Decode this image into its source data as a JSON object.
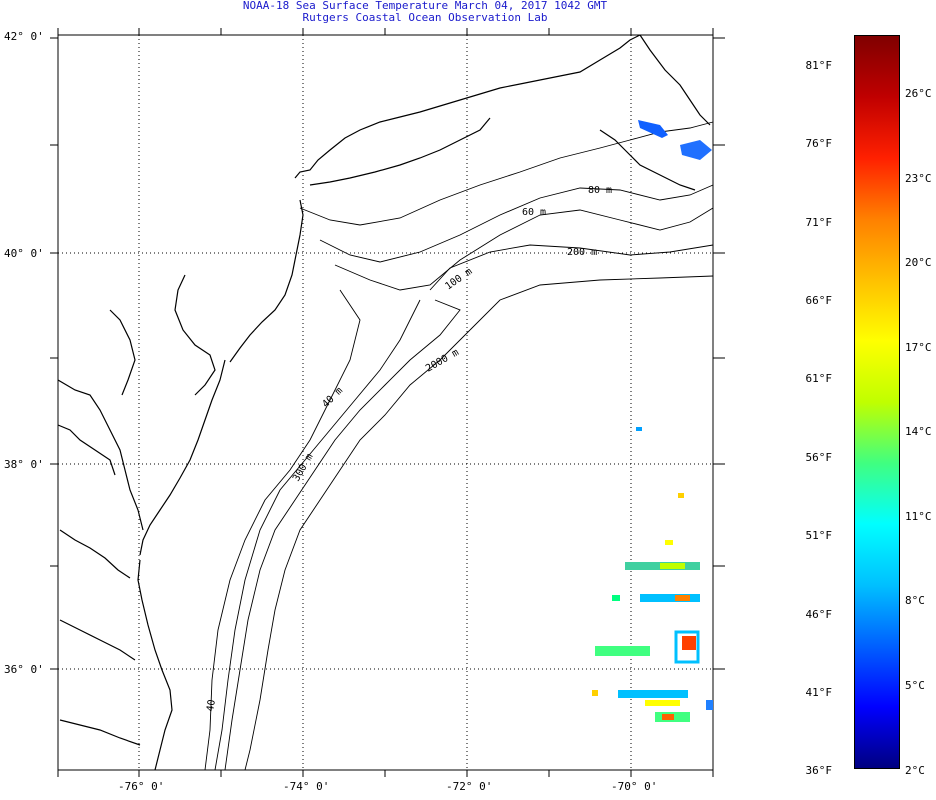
{
  "title": {
    "line1": "NOAA-18 Sea Surface Temperature March 04, 2017 1042 GMT",
    "line2": "Rutgers Coastal Ocean Observation Lab"
  },
  "latitude_labels": [
    "42° 0'",
    "40° 0'",
    "38° 0'",
    "36° 0'"
  ],
  "longitude_labels": [
    "-76° 0'",
    "-74° 0'",
    "-72° 0'",
    "-70° 0'"
  ],
  "contour_labels": {
    "c80": "80 m",
    "c60": "60 m",
    "c200": "200 m",
    "c100": "100 m",
    "c2000": "2000 m",
    "c40": "40 m",
    "c300": "300 m",
    "c40b": "40"
  },
  "colorbar": {
    "fahrenheit": [
      "81°F",
      "76°F",
      "71°F",
      "66°F",
      "61°F",
      "56°F",
      "51°F",
      "46°F",
      "41°F",
      "36°F"
    ],
    "celsius": [
      "26°C",
      "23°C",
      "20°C",
      "17°C",
      "14°C",
      "11°C",
      "8°C",
      "5°C",
      "2°C"
    ],
    "gradient_stops": [
      "#000080",
      "#0000ff",
      "#0060ff",
      "#00c0ff",
      "#00ffff",
      "#40ff80",
      "#c0ff00",
      "#ffff00",
      "#ffc000",
      "#ff8000",
      "#ff2000",
      "#c00000",
      "#800000"
    ]
  }
}
